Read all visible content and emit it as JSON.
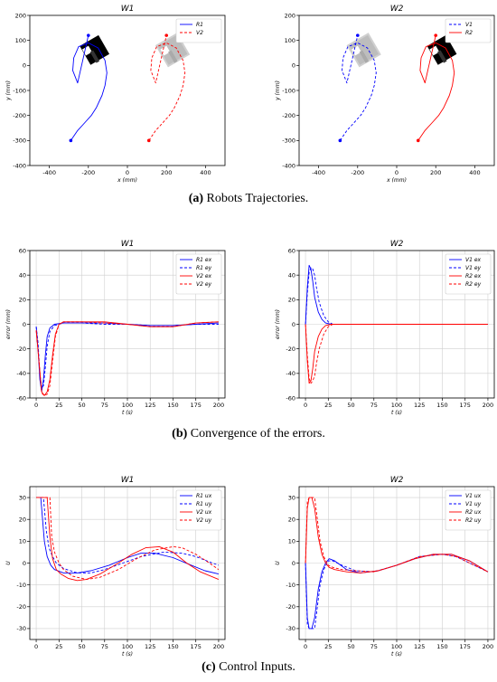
{
  "captions": {
    "a_label": "(a)",
    "a_text": "Robots Trajectories.",
    "b_label": "(b)",
    "b_text": "Convergence of the errors.",
    "c_label": "(c)",
    "c_text": "Control Inputs."
  },
  "colors": {
    "robot1": "#0000ff",
    "robot2": "#ff0000",
    "marker": "#9a9a9a"
  },
  "chart_data": [
    {
      "type": "line",
      "title": "W1",
      "xlabel": "x (mm)",
      "ylabel": "y (mm)",
      "xlim": [
        -500,
        500
      ],
      "ylim": [
        -400,
        200
      ],
      "xticks": [
        -400,
        -200,
        0,
        200,
        400
      ],
      "yticks": [
        -400,
        -300,
        -200,
        -100,
        0,
        100,
        200
      ],
      "grid": false,
      "legend": "top-right",
      "series": [
        {
          "name": "R1",
          "color": "#0000ff",
          "dash": false,
          "x": [
            -290,
            -255,
            -220,
            -185,
            -160,
            -130,
            -115,
            -105,
            -115,
            -150,
            -200,
            -250,
            -275,
            -280,
            -255,
            -200
          ],
          "y": [
            -300,
            -260,
            -230,
            -200,
            -170,
            -120,
            -80,
            -30,
            20,
            70,
            90,
            75,
            30,
            -20,
            -70,
            120
          ]
        },
        {
          "name": "V2",
          "color": "#ff0000",
          "dash": true,
          "x": [
            110,
            145,
            180,
            215,
            240,
            270,
            285,
            295,
            285,
            250,
            200,
            150,
            125,
            120,
            145,
            200
          ],
          "y": [
            -300,
            -260,
            -230,
            -200,
            -170,
            -120,
            -80,
            -30,
            20,
            70,
            90,
            75,
            30,
            -20,
            -70,
            120
          ]
        }
      ],
      "start_points": [
        {
          "x": -290,
          "y": -300,
          "color": "#0000ff"
        },
        {
          "x": 110,
          "y": -300,
          "color": "#ff0000"
        }
      ],
      "end_points": [
        {
          "x": -200,
          "y": 120,
          "color": "#0000ff"
        },
        {
          "x": 200,
          "y": 120,
          "color": "#ff0000"
        }
      ]
    },
    {
      "type": "line",
      "title": "W2",
      "xlabel": "x (mm)",
      "ylabel": "y (mm)",
      "xlim": [
        -500,
        500
      ],
      "ylim": [
        -400,
        200
      ],
      "xticks": [
        -400,
        -200,
        0,
        200,
        400
      ],
      "yticks": [
        -400,
        -300,
        -200,
        -100,
        0,
        100,
        200
      ],
      "grid": false,
      "legend": "top-right",
      "series": [
        {
          "name": "V1",
          "color": "#0000ff",
          "dash": true,
          "x": [
            -290,
            -255,
            -220,
            -185,
            -160,
            -130,
            -115,
            -105,
            -115,
            -150,
            -200,
            -250,
            -275,
            -280,
            -255,
            -200
          ],
          "y": [
            -300,
            -260,
            -230,
            -200,
            -170,
            -120,
            -80,
            -30,
            20,
            70,
            90,
            75,
            30,
            -20,
            -70,
            120
          ]
        },
        {
          "name": "R2",
          "color": "#ff0000",
          "dash": false,
          "x": [
            110,
            145,
            180,
            215,
            240,
            270,
            285,
            295,
            285,
            250,
            200,
            150,
            125,
            120,
            145,
            200
          ],
          "y": [
            -300,
            -260,
            -230,
            -200,
            -170,
            -120,
            -80,
            -30,
            20,
            70,
            90,
            75,
            30,
            -20,
            -70,
            120
          ]
        }
      ],
      "start_points": [
        {
          "x": -290,
          "y": -300,
          "color": "#0000ff"
        },
        {
          "x": 110,
          "y": -300,
          "color": "#ff0000"
        }
      ],
      "end_points": [
        {
          "x": -200,
          "y": 120,
          "color": "#0000ff"
        },
        {
          "x": 200,
          "y": 120,
          "color": "#ff0000"
        }
      ]
    },
    {
      "type": "line",
      "title": "W1",
      "xlabel": "t (s)",
      "ylabel": "error (mm)",
      "xlim": [
        -7,
        207
      ],
      "ylim": [
        -60,
        60
      ],
      "xticks": [
        0,
        25,
        50,
        75,
        100,
        125,
        150,
        175,
        200
      ],
      "yticks": [
        -60,
        -40,
        -20,
        0,
        20,
        40,
        60
      ],
      "grid": true,
      "legend": "top-right",
      "series": [
        {
          "name": "R1 ex",
          "color": "#0000ff",
          "dash": false,
          "x": [
            0,
            2,
            4,
            6,
            8,
            10,
            12,
            15,
            20,
            30,
            50,
            75,
            100,
            125,
            150,
            175,
            200
          ],
          "y": [
            -2,
            -20,
            -45,
            -55,
            -45,
            -25,
            -10,
            -3,
            0,
            1,
            1,
            1,
            0,
            -1,
            -1,
            0,
            1
          ]
        },
        {
          "name": "R1 ey",
          "color": "#0000ff",
          "dash": true,
          "x": [
            0,
            2,
            4,
            6,
            8,
            10,
            12,
            15,
            20,
            30,
            50,
            75,
            100,
            125,
            150,
            175,
            200
          ],
          "y": [
            -2,
            -15,
            -40,
            -52,
            -50,
            -35,
            -18,
            -6,
            -1,
            1,
            1,
            0,
            0,
            -1,
            -1,
            0,
            0
          ]
        },
        {
          "name": "V2 ex",
          "color": "#ff0000",
          "dash": false,
          "x": [
            0,
            3,
            6,
            9,
            12,
            15,
            18,
            21,
            25,
            30,
            50,
            75,
            100,
            125,
            150,
            175,
            200
          ],
          "y": [
            -5,
            -30,
            -55,
            -58,
            -55,
            -45,
            -25,
            -8,
            0,
            2,
            2,
            2,
            0,
            -2,
            -2,
            1,
            2
          ]
        },
        {
          "name": "V2 ey",
          "color": "#ff0000",
          "dash": true,
          "x": [
            0,
            3,
            6,
            9,
            12,
            15,
            18,
            21,
            25,
            30,
            50,
            75,
            100,
            125,
            150,
            175,
            200
          ],
          "y": [
            -5,
            -30,
            -56,
            -58,
            -57,
            -50,
            -30,
            -10,
            0,
            2,
            2,
            1,
            0,
            -2,
            -2,
            1,
            2
          ]
        }
      ]
    },
    {
      "type": "line",
      "title": "W2",
      "xlabel": "t (s)",
      "ylabel": "error (mm)",
      "xlim": [
        -7,
        207
      ],
      "ylim": [
        -60,
        60
      ],
      "xticks": [
        0,
        25,
        50,
        75,
        100,
        125,
        150,
        175,
        200
      ],
      "yticks": [
        -60,
        -40,
        -20,
        0,
        20,
        40,
        60
      ],
      "grid": true,
      "legend": "top-right",
      "series": [
        {
          "name": "V1 ex",
          "color": "#0000ff",
          "dash": false,
          "x": [
            0,
            2,
            4,
            6,
            8,
            10,
            14,
            18,
            22,
            28,
            35,
            50,
            100,
            150,
            200
          ],
          "y": [
            0,
            30,
            48,
            45,
            35,
            22,
            10,
            4,
            1,
            0,
            0,
            0,
            0,
            0,
            0
          ]
        },
        {
          "name": "V1 ey",
          "color": "#0000ff",
          "dash": true,
          "x": [
            0,
            2,
            4,
            6,
            8,
            10,
            12,
            15,
            20,
            25,
            30,
            35,
            50,
            100,
            150,
            200
          ],
          "y": [
            0,
            25,
            42,
            46,
            45,
            40,
            30,
            18,
            7,
            2,
            0,
            0,
            0,
            0,
            0,
            0
          ]
        },
        {
          "name": "R2 ex",
          "color": "#ff0000",
          "dash": false,
          "x": [
            0,
            2,
            4,
            6,
            8,
            10,
            14,
            18,
            22,
            28,
            35,
            50,
            100,
            150,
            200
          ],
          "y": [
            0,
            -30,
            -48,
            -46,
            -36,
            -22,
            -10,
            -4,
            -1,
            0,
            0,
            0,
            0,
            0,
            0
          ]
        },
        {
          "name": "R2 ey",
          "color": "#ff0000",
          "dash": true,
          "x": [
            0,
            2,
            4,
            6,
            8,
            10,
            12,
            15,
            20,
            25,
            30,
            35,
            50,
            100,
            150,
            200
          ],
          "y": [
            0,
            -25,
            -44,
            -48,
            -46,
            -42,
            -32,
            -20,
            -8,
            -2,
            0,
            0,
            0,
            0,
            0,
            0
          ]
        }
      ]
    },
    {
      "type": "line",
      "title": "W1",
      "xlabel": "t (s)",
      "ylabel": "U",
      "xlim": [
        -7,
        207
      ],
      "ylim": [
        -35,
        35
      ],
      "xticks": [
        0,
        25,
        50,
        75,
        100,
        125,
        150,
        175,
        200
      ],
      "yticks": [
        -30,
        -20,
        -10,
        0,
        10,
        20,
        30
      ],
      "grid": true,
      "legend": "top-right",
      "series": [
        {
          "name": "R1 ux",
          "color": "#0000ff",
          "dash": false,
          "x": [
            0,
            5,
            7,
            9,
            12,
            16,
            20,
            30,
            45,
            60,
            80,
            100,
            115,
            130,
            150,
            170,
            185,
            200
          ],
          "y": [
            30,
            30,
            20,
            10,
            3,
            -1,
            -3,
            -4.5,
            -4.5,
            -3.5,
            -1,
            2.5,
            4.5,
            4.5,
            2.5,
            -1,
            -3.5,
            -5
          ]
        },
        {
          "name": "R1 uy",
          "color": "#0000ff",
          "dash": true,
          "x": [
            0,
            8,
            11,
            14,
            18,
            22,
            30,
            45,
            60,
            75,
            95,
            115,
            140,
            160,
            175,
            190,
            200
          ],
          "y": [
            30,
            30,
            15,
            7,
            3,
            0,
            -2.5,
            -4.5,
            -4.5,
            -3,
            0,
            3,
            5,
            4.5,
            3,
            0.5,
            -1
          ]
        },
        {
          "name": "V2 ux",
          "color": "#ff0000",
          "dash": false,
          "x": [
            0,
            12,
            15,
            18,
            22,
            27,
            35,
            45,
            55,
            70,
            90,
            105,
            120,
            135,
            150,
            165,
            180,
            200
          ],
          "y": [
            30,
            30,
            12,
            2,
            -3,
            -5,
            -7,
            -8,
            -7.5,
            -5,
            0,
            4,
            7,
            7.5,
            5,
            0,
            -4,
            -7.5
          ]
        },
        {
          "name": "V2 uy",
          "color": "#ff0000",
          "dash": true,
          "x": [
            0,
            15,
            17,
            20,
            25,
            30,
            40,
            55,
            70,
            90,
            110,
            130,
            150,
            160,
            175,
            190,
            200
          ],
          "y": [
            30,
            30,
            12,
            5,
            0,
            -3,
            -6,
            -7.5,
            -6.5,
            -3,
            2,
            6,
            7.5,
            7,
            4,
            0,
            -3
          ]
        }
      ]
    },
    {
      "type": "line",
      "title": "W2",
      "xlabel": "t (s)",
      "ylabel": "U",
      "xlim": [
        -7,
        207
      ],
      "ylim": [
        -35,
        35
      ],
      "xticks": [
        0,
        25,
        50,
        75,
        100,
        125,
        150,
        175,
        200
      ],
      "yticks": [
        -30,
        -20,
        -10,
        0,
        10,
        20,
        30
      ],
      "grid": true,
      "legend": "top-right",
      "series": [
        {
          "name": "V1 ux",
          "color": "#0000ff",
          "dash": false,
          "x": [
            0,
            2,
            4,
            7,
            10,
            14,
            18,
            22,
            26,
            32,
            45,
            60,
            80,
            100,
            120,
            140,
            160,
            180,
            200
          ],
          "y": [
            0,
            -25,
            -30,
            -30,
            -25,
            -12,
            -4,
            0,
            2,
            1,
            -3,
            -4.5,
            -3.5,
            -1,
            2,
            4,
            4,
            1,
            -4
          ]
        },
        {
          "name": "V1 uy",
          "color": "#0000ff",
          "dash": true,
          "x": [
            0,
            2,
            4,
            10,
            13,
            16,
            20,
            25,
            30,
            40,
            55,
            75,
            100,
            125,
            150,
            165,
            185,
            200
          ],
          "y": [
            0,
            -28,
            -30,
            -30,
            -20,
            -10,
            -3,
            1,
            1,
            -1,
            -3.5,
            -4,
            -1,
            3,
            4,
            3,
            -1,
            -4
          ]
        },
        {
          "name": "R2 ux",
          "color": "#ff0000",
          "dash": false,
          "x": [
            0,
            2,
            4,
            7,
            10,
            14,
            18,
            22,
            26,
            32,
            45,
            60,
            80,
            100,
            120,
            140,
            160,
            180,
            200
          ],
          "y": [
            0,
            25,
            30,
            30,
            25,
            12,
            4,
            0,
            -2,
            -3,
            -4,
            -4.5,
            -3.5,
            -1,
            2,
            4,
            4,
            1,
            -4
          ]
        },
        {
          "name": "R2 uy",
          "color": "#ff0000",
          "dash": true,
          "x": [
            0,
            2,
            4,
            10,
            13,
            16,
            20,
            25,
            30,
            40,
            55,
            75,
            100,
            125,
            150,
            165,
            185,
            200
          ],
          "y": [
            0,
            28,
            30,
            30,
            20,
            10,
            3,
            -1,
            -2,
            -3,
            -3.5,
            -4,
            -1,
            3,
            4,
            3,
            -1,
            -4
          ]
        }
      ]
    }
  ]
}
